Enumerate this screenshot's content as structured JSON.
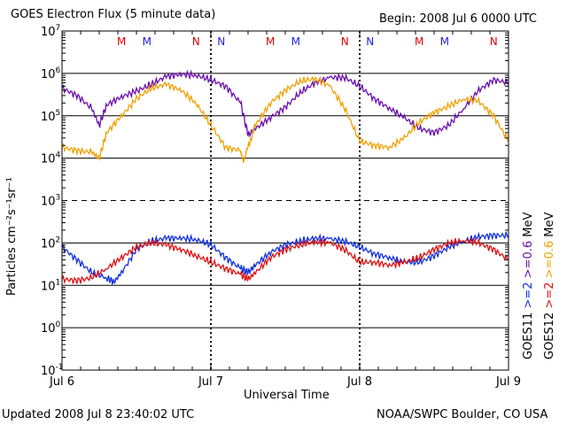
{
  "chart_data": {
    "type": "line",
    "title": "GOES Electron Flux (5 minute data)",
    "begin_label": "Begin: 2008 Jul 6 0000 UTC",
    "xlabel": "Universal Time",
    "ylabel": "Particles cm⁻²s⁻¹sr⁻¹",
    "yscale": "log",
    "ylim": [
      0.1,
      10000000
    ],
    "yticks": [
      {
        "exp": "-1",
        "value": 0.1
      },
      {
        "exp": "0",
        "value": 1
      },
      {
        "exp": "1",
        "value": 10
      },
      {
        "exp": "2",
        "value": 100
      },
      {
        "exp": "3",
        "value": 1000
      },
      {
        "exp": "4",
        "value": 10000
      },
      {
        "exp": "5",
        "value": 100000
      },
      {
        "exp": "6",
        "value": 1000000
      },
      {
        "exp": "7",
        "value": 10000000
      }
    ],
    "grid_solid": [
      1,
      10,
      100,
      10000,
      100000,
      1000000
    ],
    "grid_dashed": [
      1000
    ],
    "xlim_days": [
      0,
      3
    ],
    "xticks": [
      {
        "label": "Jul 6",
        "day": 0
      },
      {
        "label": "Jul 7",
        "day": 1
      },
      {
        "label": "Jul 8",
        "day": 2
      },
      {
        "label": "Jul 9",
        "day": 3
      }
    ],
    "markers": [
      {
        "label": "M",
        "day": 0.4,
        "color": "#e00000"
      },
      {
        "label": "M",
        "day": 0.57,
        "color": "#2020e0"
      },
      {
        "label": "N",
        "day": 0.9,
        "color": "#e00000"
      },
      {
        "label": "N",
        "day": 1.07,
        "color": "#2020e0"
      },
      {
        "label": "M",
        "day": 1.4,
        "color": "#e00000"
      },
      {
        "label": "M",
        "day": 1.57,
        "color": "#2020e0"
      },
      {
        "label": "N",
        "day": 1.9,
        "color": "#e00000"
      },
      {
        "label": "N",
        "day": 2.07,
        "color": "#2020e0"
      },
      {
        "label": "M",
        "day": 2.4,
        "color": "#e00000"
      },
      {
        "label": "M",
        "day": 2.57,
        "color": "#2020e0"
      },
      {
        "label": "N",
        "day": 2.9,
        "color": "#e00000"
      },
      {
        "label": "N",
        "day": 3.07,
        "color": "#2020e0"
      }
    ],
    "series": [
      {
        "name": "GOES11 >=0.6 MeV",
        "color": "#6a0dad",
        "day": [
          0.0,
          0.1,
          0.2,
          0.25,
          0.3,
          0.4,
          0.5,
          0.6,
          0.7,
          0.8,
          0.9,
          1.0,
          1.1,
          1.2,
          1.25,
          1.3,
          1.4,
          1.5,
          1.6,
          1.7,
          1.8,
          1.9,
          2.0,
          2.1,
          2.2,
          2.3,
          2.4,
          2.5,
          2.6,
          2.7,
          2.8,
          2.9,
          3.0
        ],
        "value": [
          450000,
          300000,
          150000,
          60000,
          180000,
          280000,
          380000,
          550000,
          850000,
          950000,
          900000,
          700000,
          500000,
          200000,
          35000,
          50000,
          90000,
          160000,
          350000,
          600000,
          800000,
          800000,
          500000,
          250000,
          150000,
          90000,
          50000,
          40000,
          60000,
          150000,
          400000,
          700000,
          600000
        ]
      },
      {
        "name": "GOES12 >=0.6 MeV",
        "color": "#f0a000",
        "day": [
          0.0,
          0.1,
          0.2,
          0.25,
          0.3,
          0.4,
          0.5,
          0.6,
          0.7,
          0.8,
          0.9,
          1.0,
          1.1,
          1.2,
          1.22,
          1.3,
          1.4,
          1.5,
          1.6,
          1.7,
          1.8,
          1.9,
          2.0,
          2.1,
          2.2,
          2.3,
          2.4,
          2.5,
          2.6,
          2.7,
          2.8,
          2.9,
          3.0
        ],
        "value": [
          18000,
          15000,
          14000,
          10000,
          40000,
          100000,
          250000,
          450000,
          550000,
          400000,
          200000,
          60000,
          18000,
          15000,
          9000,
          60000,
          200000,
          400000,
          650000,
          750000,
          500000,
          150000,
          25000,
          20000,
          18000,
          30000,
          70000,
          120000,
          170000,
          250000,
          220000,
          100000,
          25000
        ]
      },
      {
        "name": "GOES11 >=2 MeV",
        "color": "#1030e0",
        "day": [
          0.0,
          0.1,
          0.2,
          0.3,
          0.35,
          0.4,
          0.5,
          0.6,
          0.7,
          0.8,
          0.9,
          1.0,
          1.1,
          1.2,
          1.25,
          1.3,
          1.4,
          1.5,
          1.6,
          1.7,
          1.8,
          1.9,
          2.0,
          2.1,
          2.2,
          2.3,
          2.4,
          2.5,
          2.6,
          2.7,
          2.8,
          2.9,
          3.0
        ],
        "value": [
          80,
          40,
          20,
          15,
          12,
          20,
          70,
          110,
          130,
          130,
          120,
          90,
          45,
          25,
          20,
          30,
          60,
          90,
          110,
          130,
          125,
          110,
          80,
          55,
          45,
          35,
          35,
          50,
          80,
          110,
          140,
          150,
          150
        ]
      },
      {
        "name": "GOES12 >=2 MeV",
        "color": "#e01010",
        "day": [
          0.0,
          0.1,
          0.2,
          0.3,
          0.4,
          0.5,
          0.6,
          0.7,
          0.8,
          0.9,
          1.0,
          1.1,
          1.2,
          1.25,
          1.3,
          1.4,
          1.5,
          1.6,
          1.7,
          1.8,
          1.9,
          2.0,
          2.1,
          2.2,
          2.3,
          2.4,
          2.5,
          2.6,
          2.7,
          2.8,
          2.9,
          3.0
        ],
        "value": [
          14,
          13,
          15,
          25,
          45,
          80,
          100,
          90,
          70,
          50,
          35,
          25,
          18,
          14,
          20,
          45,
          70,
          90,
          105,
          100,
          70,
          35,
          35,
          30,
          35,
          45,
          70,
          100,
          115,
          100,
          70,
          40
        ]
      }
    ],
    "legend_right": [
      {
        "text": "GOES11",
        "color": "#000000",
        "column": 0
      },
      {
        "text": ">=2",
        "color": "#1030e0",
        "column": 0
      },
      {
        "text": ">=0.6",
        "color": "#6a0dad",
        "column": 0
      },
      {
        "text": "MeV",
        "color": "#000000",
        "column": 0
      },
      {
        "text": "GOES12",
        "color": "#000000",
        "column": 1
      },
      {
        "text": ">=2",
        "color": "#e01010",
        "column": 1
      },
      {
        "text": ">=0.6",
        "color": "#f0a000",
        "column": 1
      },
      {
        "text": "MeV",
        "color": "#000000",
        "column": 1
      }
    ]
  },
  "footer": {
    "updated": "Updated 2008 Jul  8 23:40:02 UTC",
    "source": "NOAA/SWPC Boulder, CO USA"
  }
}
